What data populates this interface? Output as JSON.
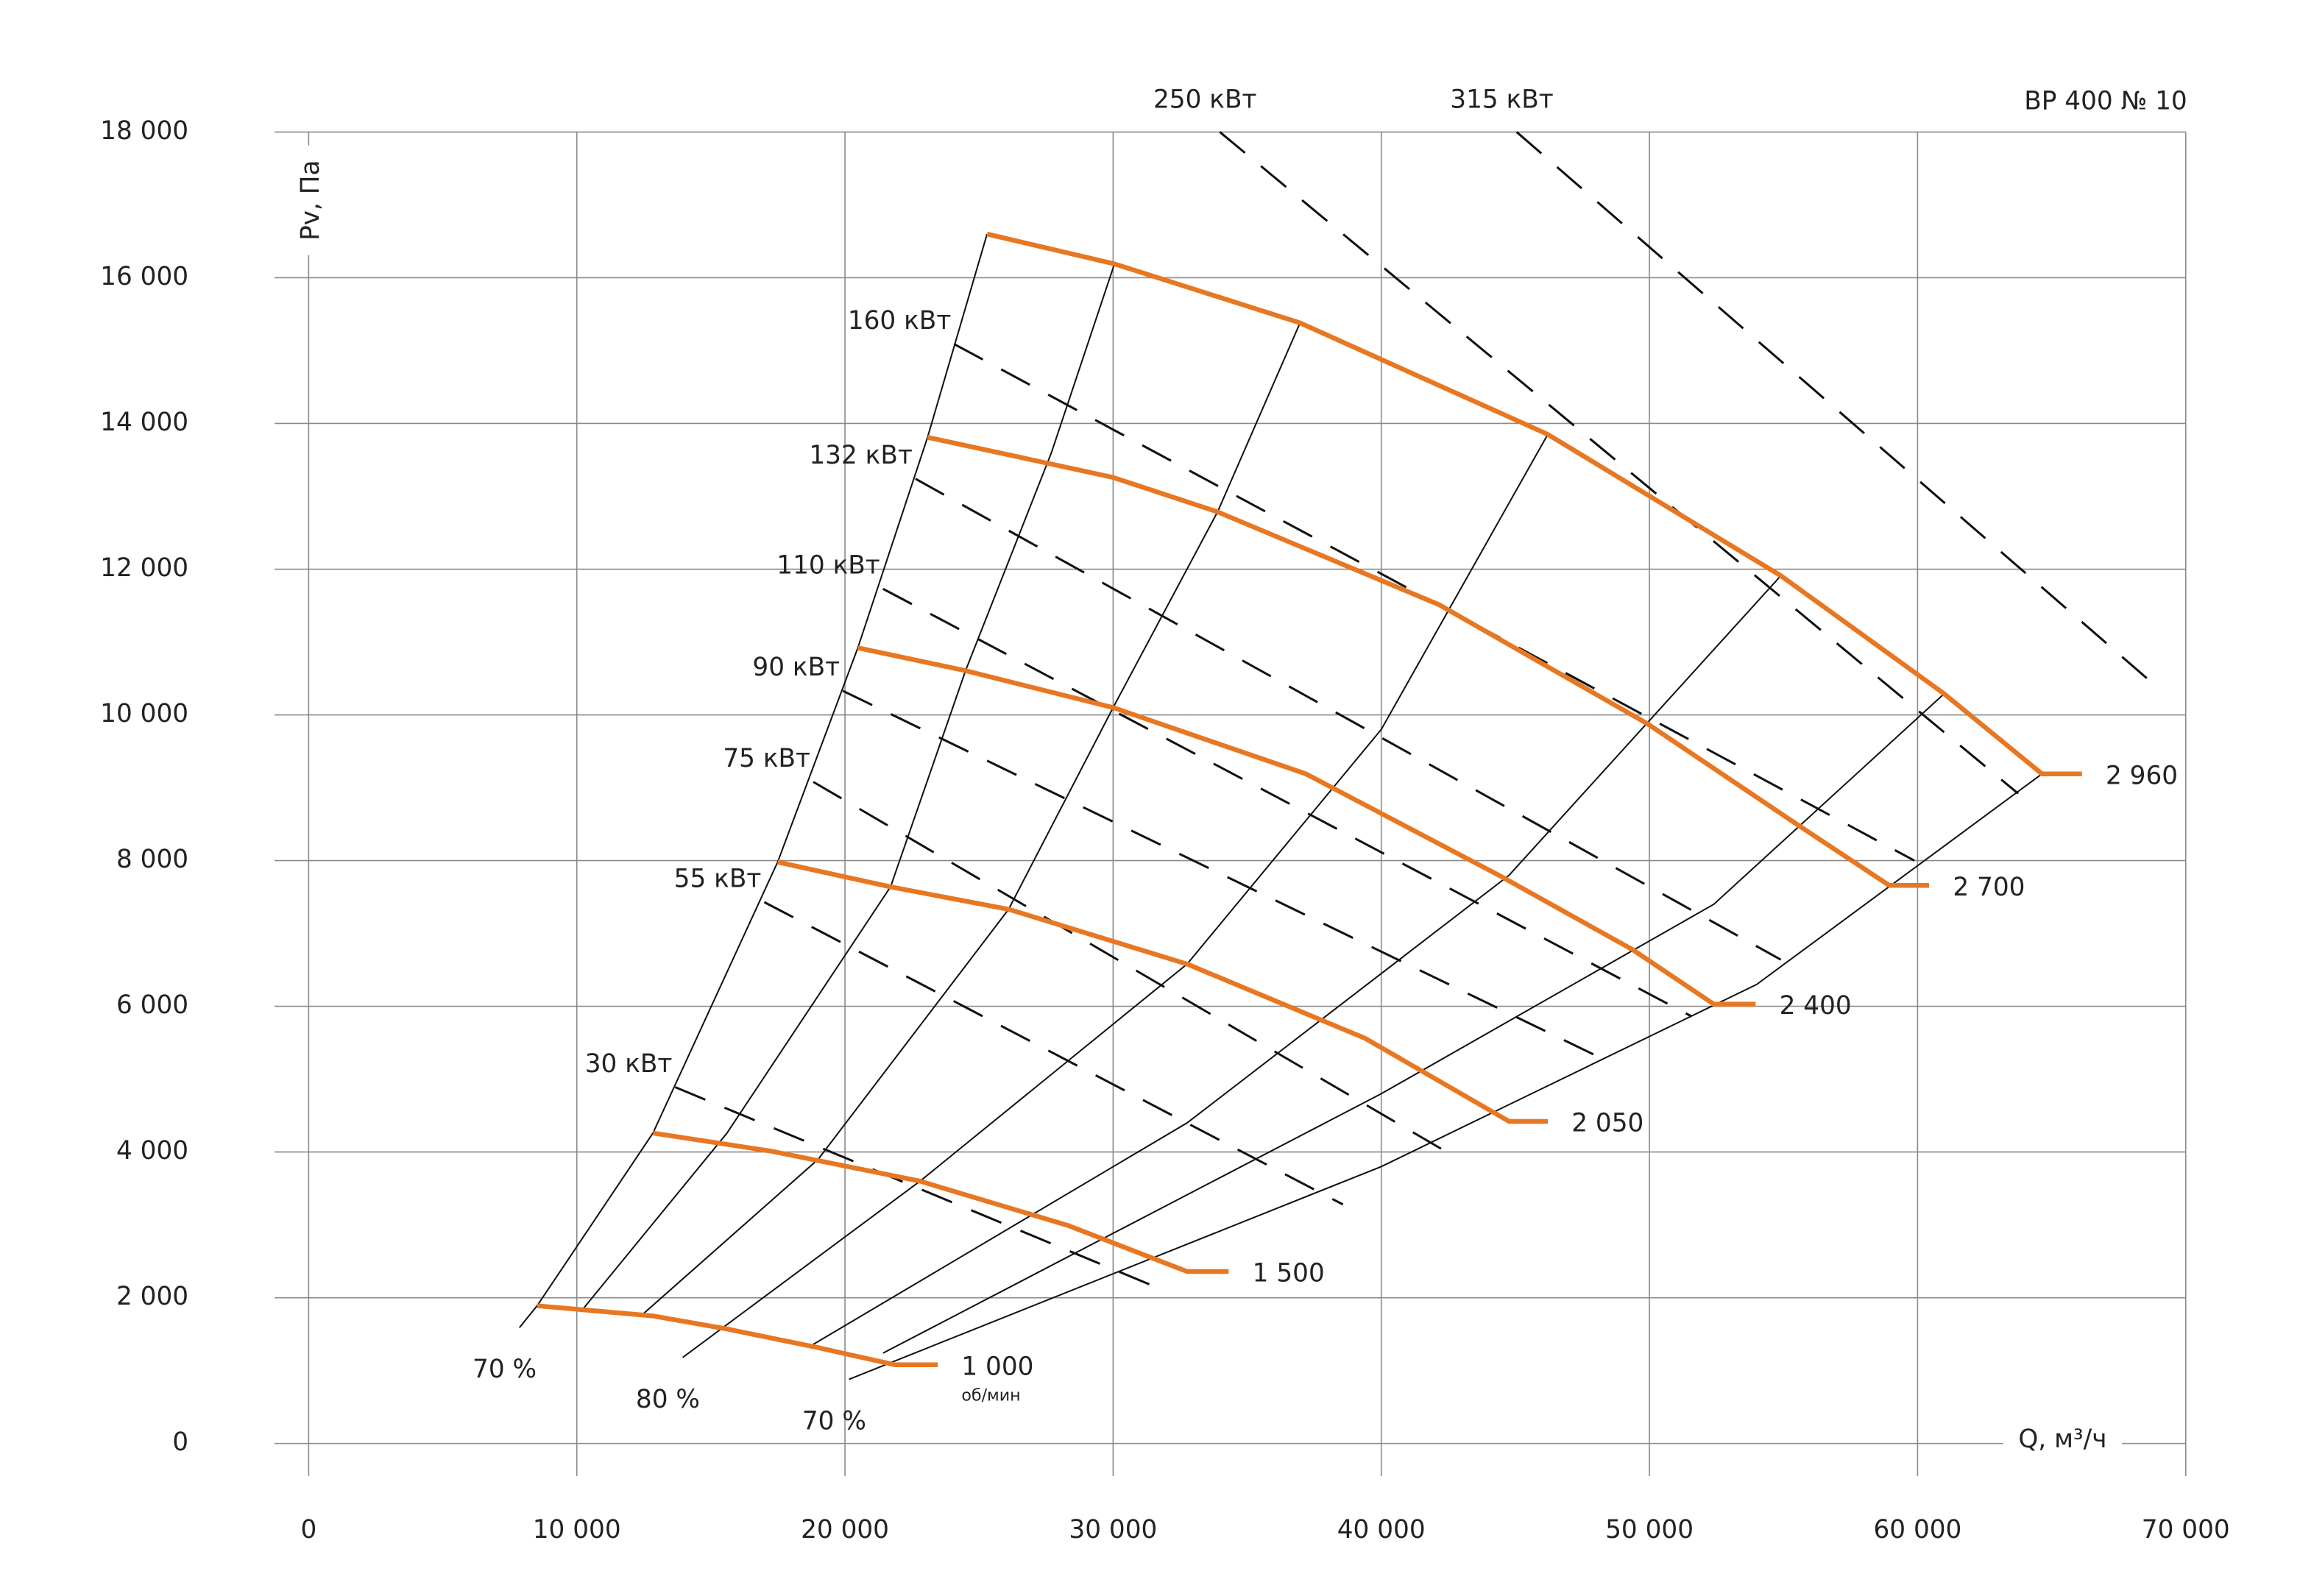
{
  "chart_data": {
    "type": "line",
    "title": "ВР 400 № 10",
    "x_label": "Q, м³/ч",
    "y_label": "Pv, Па",
    "rpm_unit": "об/мин",
    "xlim": [
      0,
      70000
    ],
    "ylim": [
      0,
      18000
    ],
    "xticks": [
      0,
      {
        "value": 10000,
        "label": "10 000"
      },
      {
        "value": 20000,
        "label": "20 000"
      },
      {
        "value": 30000,
        "label": "30 000"
      },
      {
        "value": 40000,
        "label": "40 000"
      },
      {
        "value": 50000,
        "label": "50 000"
      },
      {
        "value": 60000,
        "label": "60 000"
      },
      {
        "value": 70000,
        "label": "70 000"
      }
    ],
    "yticks": [
      0,
      {
        "value": 2000,
        "label": "2 000"
      },
      {
        "value": 4000,
        "label": "4 000"
      },
      {
        "value": 6000,
        "label": "6 000"
      },
      {
        "value": 8000,
        "label": "8 000"
      },
      {
        "value": 10000,
        "label": "10 000"
      },
      {
        "value": 12000,
        "label": "12 000"
      },
      {
        "value": 14000,
        "label": "14 000"
      },
      {
        "value": 16000,
        "label": "16 000"
      },
      {
        "value": 18000,
        "label": "18 000"
      }
    ],
    "grid": true,
    "series": [
      {
        "name": "1 000",
        "color": "#e87722",
        "x": [
          8520,
          12840,
          15610,
          18930,
          21860,
          23460
        ],
        "values": [
          1890,
          1750,
          1570,
          1320,
          1080,
          1080
        ]
      },
      {
        "name": "1 500",
        "color": "#e87722",
        "x": [
          12840,
          17270,
          22800,
          28330,
          32760,
          34310
        ],
        "values": [
          4260,
          4010,
          3600,
          2990,
          2360,
          2360
        ]
      },
      {
        "name": "2 050",
        "color": "#e87722",
        "x": [
          17490,
          21690,
          26120,
          32760,
          39400,
          44770,
          46210
        ],
        "values": [
          7980,
          7640,
          7330,
          6580,
          5560,
          4420,
          4420
        ]
      },
      {
        "name": "2 400",
        "color": "#e87722",
        "x": [
          20480,
          24460,
          30000,
          37190,
          44380,
          49360,
          52400,
          53960
        ],
        "values": [
          10920,
          10610,
          10100,
          9190,
          7800,
          6780,
          6030,
          6030
        ]
      },
      {
        "name": "2 700",
        "color": "#e87722",
        "x": [
          23080,
          29990,
          33870,
          42170,
          49920,
          55450,
          58940,
          60430
        ],
        "values": [
          13810,
          13260,
          12790,
          11510,
          9880,
          8510,
          7660,
          7660
        ]
      },
      {
        "name": "2 960",
        "color": "#e87722",
        "x": [
          25300,
          30050,
          36970,
          46210,
          54900,
          60990,
          64640,
          66130
        ],
        "values": [
          16600,
          16190,
          15380,
          13850,
          11910,
          10290,
          9190,
          9190
        ]
      }
    ],
    "efficiency_lines": [
      {
        "label": "70 %",
        "x": [
          7860,
          8520,
          12840,
          17490,
          20480,
          23080,
          25300
        ],
        "values": [
          1590,
          1890,
          4260,
          7980,
          10920,
          13810,
          16600
        ]
      },
      {
        "x": [
          10240,
          15600,
          21700,
          24500,
          27700,
          30050
        ],
        "values": [
          1850,
          4260,
          7640,
          10610,
          13600,
          16190
        ]
      },
      {
        "x": [
          12450,
          19000,
          26100,
          30000,
          33900,
          36970
        ],
        "values": [
          1770,
          3900,
          7330,
          10100,
          12790,
          15380
        ]
      },
      {
        "label": "80 %",
        "x": [
          13950,
          22800,
          32760,
          40000,
          46210
        ],
        "values": [
          1180,
          3600,
          6580,
          9800,
          13850
        ]
      },
      {
        "x": [
          18820,
          32760,
          44770,
          54900
        ],
        "values": [
          1360,
          4400,
          7800,
          11910
        ]
      },
      {
        "x": [
          21420,
          40000,
          52400,
          60990
        ],
        "values": [
          1240,
          4800,
          7400,
          10290
        ]
      },
      {
        "label": "70 %",
        "x": [
          20150,
          40000,
          54000,
          64640
        ],
        "values": [
          880,
          3800,
          6300,
          9190
        ]
      }
    ],
    "power_lines": [
      {
        "label": "30 кВт",
        "x": [
          13670,
          31380
        ],
        "values": [
          4890,
          2180
        ]
      },
      {
        "label": "55 кВт",
        "x": [
          16990,
          38570
        ],
        "values": [
          7430,
          3280
        ]
      },
      {
        "label": "75 кВт",
        "x": [
          18820,
          42440
        ],
        "values": [
          9080,
          4000
        ]
      },
      {
        "label": "90 кВт",
        "x": [
          19920,
          48530
        ],
        "values": [
          10330,
          5230
        ]
      },
      {
        "label": "110 кВт",
        "x": [
          21420,
          51580
        ],
        "values": [
          11730,
          5860
        ]
      },
      {
        "label": "132 кВт",
        "x": [
          22630,
          54900
        ],
        "values": [
          13240,
          6640
        ]
      },
      {
        "label": "160 кВт",
        "x": [
          24070,
          59880
        ],
        "values": [
          15090,
          8000
        ]
      },
      {
        "label": "250 кВт",
        "x": [
          33980,
          63750
        ],
        "values": [
          18000,
          8920
        ]
      },
      {
        "label": "315 кВт",
        "x": [
          45050,
          68840
        ],
        "values": [
          18000,
          10410
        ]
      }
    ]
  }
}
